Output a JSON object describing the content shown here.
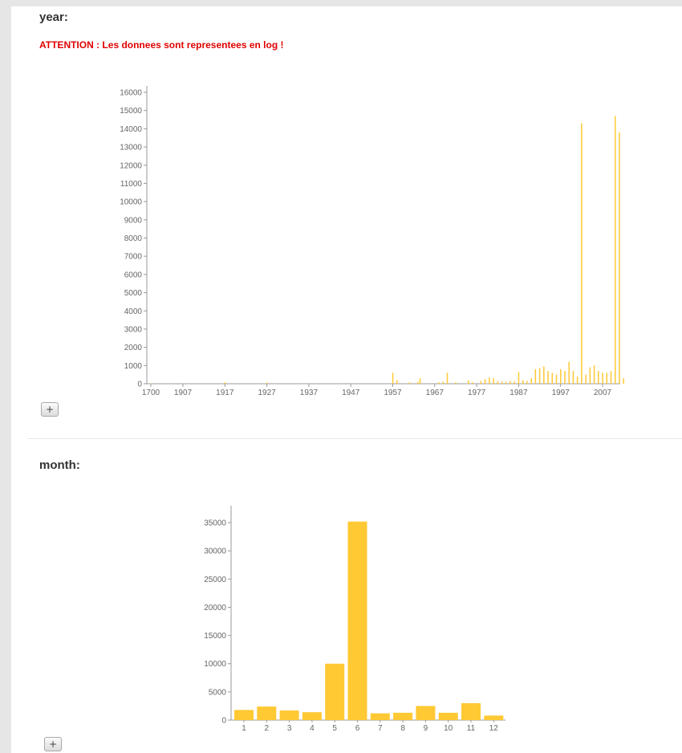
{
  "year_section": {
    "title": "year:",
    "warning": "ATTENTION : Les donnees sont representees en log !",
    "expand_label": "+"
  },
  "month_section": {
    "title": "month:",
    "expand_label": "+"
  },
  "colors": {
    "bar": "#ffc934",
    "warning": "#e00000",
    "axis": "#9a9a9a"
  },
  "chart_data": [
    {
      "type": "bar",
      "title": "",
      "xlabel": "",
      "ylabel": "",
      "x_tick_labels": [
        "1700",
        "1907",
        "1917",
        "1927",
        "1937",
        "1947",
        "1957",
        "1967",
        "1977",
        "1987",
        "1997",
        "2007"
      ],
      "ylim": [
        0,
        16000
      ],
      "y_ticks": [
        0,
        1000,
        2000,
        3000,
        4000,
        5000,
        6000,
        7000,
        8000,
        9000,
        10000,
        11000,
        12000,
        13000,
        14000,
        15000,
        16000
      ],
      "bars": [
        {
          "year": 1700,
          "value": 10
        },
        {
          "year": 1917,
          "value": 80
        },
        {
          "year": 1927,
          "value": 60
        },
        {
          "year": 1957,
          "value": 600
        },
        {
          "year": 1958,
          "value": 200
        },
        {
          "year": 1961,
          "value": 80
        },
        {
          "year": 1963,
          "value": 100
        },
        {
          "year": 1963.5,
          "value": 300
        },
        {
          "year": 1968,
          "value": 80
        },
        {
          "year": 1969,
          "value": 120
        },
        {
          "year": 1970,
          "value": 600
        },
        {
          "year": 1972,
          "value": 80
        },
        {
          "year": 1975,
          "value": 180
        },
        {
          "year": 1976,
          "value": 80
        },
        {
          "year": 1978,
          "value": 150
        },
        {
          "year": 1979,
          "value": 250
        },
        {
          "year": 1980,
          "value": 350
        },
        {
          "year": 1981,
          "value": 300
        },
        {
          "year": 1982,
          "value": 150
        },
        {
          "year": 1983,
          "value": 120
        },
        {
          "year": 1984,
          "value": 100
        },
        {
          "year": 1985,
          "value": 150
        },
        {
          "year": 1986,
          "value": 120
        },
        {
          "year": 1987,
          "value": 650
        },
        {
          "year": 1988,
          "value": 200
        },
        {
          "year": 1989,
          "value": 150
        },
        {
          "year": 1990,
          "value": 300
        },
        {
          "year": 1991,
          "value": 800
        },
        {
          "year": 1992,
          "value": 850
        },
        {
          "year": 1993,
          "value": 950
        },
        {
          "year": 1994,
          "value": 700
        },
        {
          "year": 1995,
          "value": 600
        },
        {
          "year": 1996,
          "value": 500
        },
        {
          "year": 1997,
          "value": 800
        },
        {
          "year": 1998,
          "value": 700
        },
        {
          "year": 1999,
          "value": 1200
        },
        {
          "year": 2000,
          "value": 700
        },
        {
          "year": 2001,
          "value": 400
        },
        {
          "year": 2002,
          "value": 14300
        },
        {
          "year": 2003,
          "value": 500
        },
        {
          "year": 2004,
          "value": 900
        },
        {
          "year": 2005,
          "value": 1000
        },
        {
          "year": 2006,
          "value": 700
        },
        {
          "year": 2007,
          "value": 600
        },
        {
          "year": 2008,
          "value": 600
        },
        {
          "year": 2009,
          "value": 700
        },
        {
          "year": 2010,
          "value": 14700
        },
        {
          "year": 2011,
          "value": 13800
        },
        {
          "year": 2012,
          "value": 300
        },
        {
          "year": 2013,
          "value": 300
        }
      ]
    },
    {
      "type": "bar",
      "title": "",
      "xlabel": "",
      "ylabel": "",
      "categories": [
        "1",
        "2",
        "3",
        "4",
        "5",
        "6",
        "7",
        "8",
        "9",
        "10",
        "11",
        "12"
      ],
      "values": [
        1800,
        2400,
        1700,
        1400,
        10000,
        35200,
        1200,
        1300,
        2500,
        1300,
        3000,
        800
      ],
      "ylim": [
        0,
        38000
      ],
      "y_ticks": [
        0,
        5000,
        10000,
        15000,
        20000,
        25000,
        30000,
        35000
      ]
    }
  ]
}
